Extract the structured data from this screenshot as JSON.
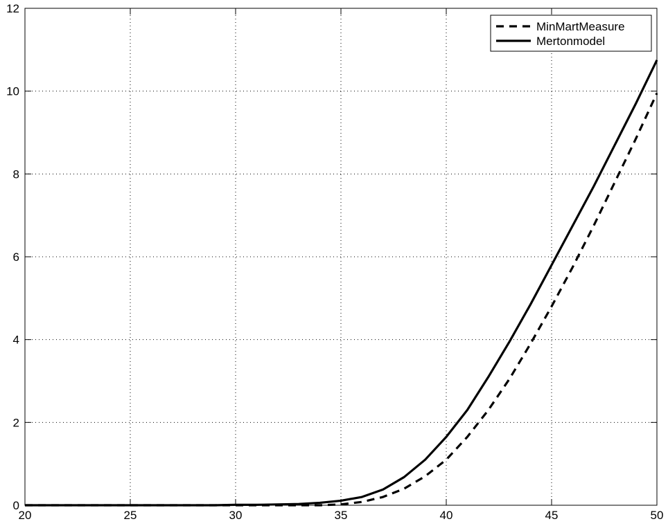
{
  "chart_data": {
    "type": "line",
    "title": "",
    "xlabel": "",
    "ylabel": "",
    "xlim": [
      20,
      50
    ],
    "ylim": [
      0,
      12
    ],
    "xticks": [
      20,
      25,
      30,
      35,
      40,
      45,
      50
    ],
    "yticks": [
      0,
      2,
      4,
      6,
      8,
      10,
      12
    ],
    "grid": true,
    "legend_position": "top-right",
    "x": [
      20,
      21,
      22,
      23,
      24,
      25,
      26,
      27,
      28,
      29,
      30,
      31,
      32,
      33,
      34,
      35,
      36,
      37,
      38,
      39,
      40,
      41,
      42,
      43,
      44,
      45,
      46,
      47,
      48,
      49,
      50
    ],
    "series": [
      {
        "name": "MinMartMeasure",
        "style": "dashed",
        "color": "#000000",
        "values": [
          0,
          0,
          0,
          0,
          0,
          0,
          0,
          0,
          0,
          0,
          0,
          0,
          0,
          0,
          0.0,
          0.02,
          0.08,
          0.2,
          0.4,
          0.7,
          1.1,
          1.65,
          2.3,
          3.05,
          3.9,
          4.8,
          5.75,
          6.75,
          7.8,
          8.85,
          9.95
        ]
      },
      {
        "name": "Mertonmodel",
        "style": "solid",
        "color": "#000000",
        "values": [
          0,
          0,
          0,
          0,
          0,
          0,
          0,
          0,
          0,
          0,
          0.01,
          0.01,
          0.02,
          0.03,
          0.06,
          0.11,
          0.2,
          0.38,
          0.68,
          1.1,
          1.65,
          2.3,
          3.1,
          3.95,
          4.85,
          5.8,
          6.75,
          7.7,
          8.7,
          9.7,
          10.75
        ]
      }
    ]
  }
}
